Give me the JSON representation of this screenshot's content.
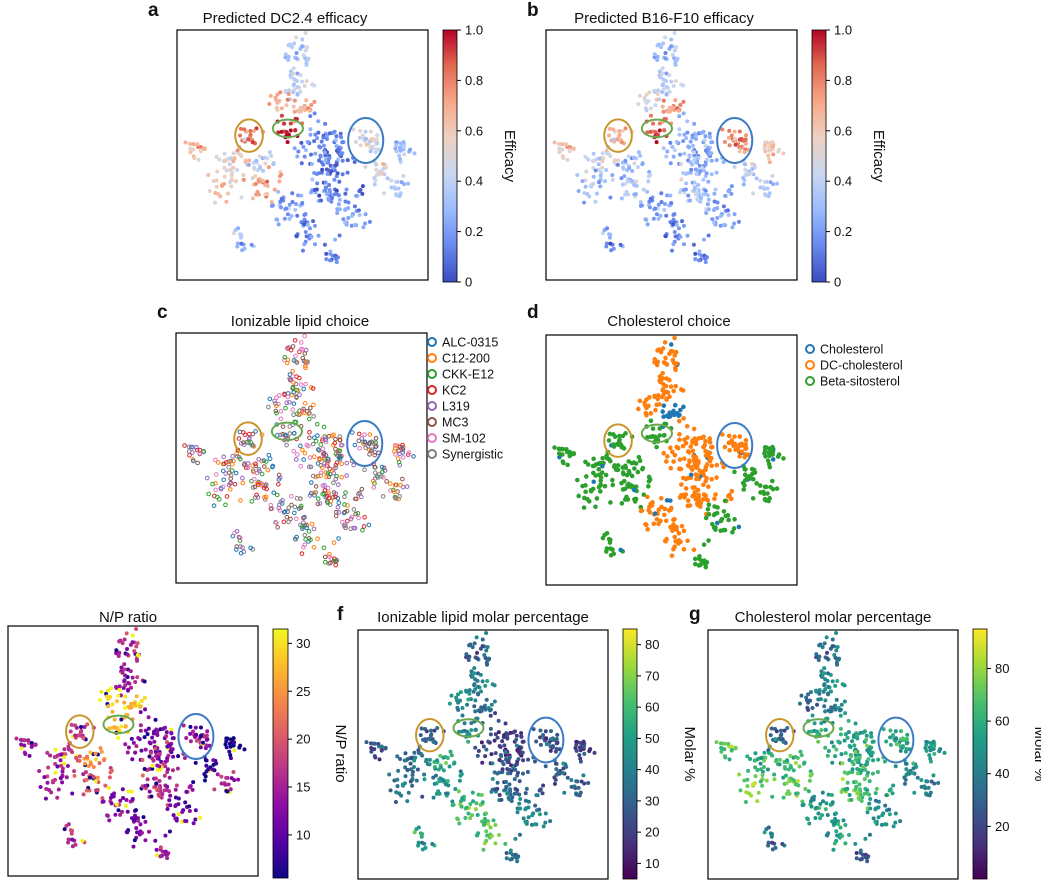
{
  "chart_data": [
    {
      "id": "a",
      "panel_label": "a",
      "type": "scatter",
      "title": "Predicted DC2.4 efficacy",
      "color_by": "eff_dc",
      "colormap": "coolwarm",
      "colorbar": {
        "label": "Efficacy",
        "range": [
          0,
          1
        ],
        "ticks": [
          "0",
          "0.2",
          "0.4",
          "0.6",
          "0.8",
          "1.0"
        ],
        "tick_values": [
          0,
          0.2,
          0.4,
          0.6,
          0.8,
          1.0
        ]
      }
    },
    {
      "id": "b",
      "panel_label": "b",
      "type": "scatter",
      "title": "Predicted B16-F10 efficacy",
      "color_by": "eff_b16",
      "colormap": "coolwarm",
      "colorbar": {
        "label": "Efficacy",
        "range": [
          0,
          1
        ],
        "ticks": [
          "0",
          "0.2",
          "0.4",
          "0.6",
          "0.8",
          "1.0"
        ],
        "tick_values": [
          0,
          0.2,
          0.4,
          0.6,
          0.8,
          1.0
        ]
      }
    },
    {
      "id": "c",
      "panel_label": "c",
      "type": "scatter",
      "title": "Ionizable lipid choice",
      "color_by": "lipid",
      "categorical": true,
      "legend": {
        "position": "right",
        "entries": [
          {
            "label": "ALC-0315",
            "color": "#1f77b4"
          },
          {
            "label": "C12-200",
            "color": "#ff7f0e"
          },
          {
            "label": "CKK-E12",
            "color": "#2ca02c"
          },
          {
            "label": "KC2",
            "color": "#d62728"
          },
          {
            "label": "L319",
            "color": "#9467bd"
          },
          {
            "label": "MC3",
            "color": "#8c564b"
          },
          {
            "label": "SM-102",
            "color": "#e377c2"
          },
          {
            "label": "Synergistic",
            "color": "#7f7f7f"
          }
        ]
      }
    },
    {
      "id": "d",
      "panel_label": "d",
      "type": "scatter",
      "title": "Cholesterol choice",
      "color_by": "chol",
      "categorical": true,
      "legend": {
        "position": "right",
        "entries": [
          {
            "label": "Cholesterol",
            "color": "#1f77b4"
          },
          {
            "label": "DC-cholesterol",
            "color": "#ff7f0e"
          },
          {
            "label": "Beta-sitosterol",
            "color": "#2ca02c"
          }
        ]
      }
    },
    {
      "id": "e",
      "panel_label": "",
      "type": "scatter",
      "title": "N/P ratio",
      "color_by": "np",
      "colormap": "plasma",
      "colorbar": {
        "label": "N/P ratio",
        "range": [
          5.5,
          31.5
        ],
        "ticks": [
          "10",
          "15",
          "20",
          "25",
          "30"
        ],
        "tick_values": [
          10,
          15,
          20,
          25,
          30
        ]
      }
    },
    {
      "id": "f",
      "panel_label": "f",
      "type": "scatter",
      "title": "Ionizable lipid molar percentage",
      "color_by": "ilmp",
      "colormap": "viridis",
      "colorbar": {
        "label": "Molar %",
        "range": [
          5,
          85
        ],
        "ticks": [
          "10",
          "20",
          "30",
          "40",
          "50",
          "60",
          "70",
          "80"
        ],
        "tick_values": [
          10,
          20,
          30,
          40,
          50,
          60,
          70,
          80
        ]
      }
    },
    {
      "id": "g",
      "panel_label": "g",
      "type": "scatter",
      "title": "Cholesterol molar percentage",
      "color_by": "cmp",
      "colormap": "viridis",
      "colorbar": {
        "label": "Molar %",
        "range": [
          0,
          95
        ],
        "ticks": [
          "20",
          "40",
          "60",
          "80"
        ],
        "tick_values": [
          20,
          40,
          60,
          80
        ]
      }
    }
  ],
  "embedding_clusters": [
    {
      "x": 49,
      "y": 8,
      "s": 5,
      "n": 28,
      "eff_dc": 0.35,
      "eff_b16": 0.3,
      "chol": 1,
      "np": 16,
      "ilmp": 30,
      "cmp": 35
    },
    {
      "x": 47,
      "y": 20,
      "s": 5,
      "n": 28,
      "eff_dc": 0.4,
      "eff_b16": 0.38,
      "chol": 1,
      "np": 14,
      "ilmp": 40,
      "cmp": 45
    },
    {
      "x": 41,
      "y": 28,
      "s": 4,
      "n": 14,
      "eff_dc": 0.7,
      "eff_b16": 0.5,
      "chol": 1,
      "np": 30,
      "ilmp": 45,
      "cmp": 30
    },
    {
      "x": 50,
      "y": 31,
      "s": 4,
      "n": 18,
      "eff_dc": 0.7,
      "eff_b16": 0.75,
      "chol": 0,
      "np": 28,
      "ilmp": 35,
      "cmp": 40
    },
    {
      "x": 44,
      "y": 39,
      "s": 4,
      "n": 22,
      "eff_dc": 0.95,
      "eff_b16": 0.85,
      "chol": 2,
      "np": 27,
      "ilmp": 40,
      "cmp": 55
    },
    {
      "x": 28,
      "y": 42,
      "s": 4,
      "n": 20,
      "eff_dc": 0.85,
      "eff_b16": 0.7,
      "chol": 2,
      "np": 18,
      "ilmp": 30,
      "cmp": 30
    },
    {
      "x": 7,
      "y": 47,
      "s": 4,
      "n": 18,
      "eff_dc": 0.65,
      "eff_b16": 0.6,
      "chol": 2,
      "np": 15,
      "ilmp": 25,
      "cmp": 70
    },
    {
      "x": 21,
      "y": 52,
      "s": 6,
      "n": 30,
      "eff_dc": 0.55,
      "eff_b16": 0.45,
      "chol": 2,
      "np": 17,
      "ilmp": 35,
      "cmp": 60
    },
    {
      "x": 58,
      "y": 46,
      "s": 9,
      "n": 70,
      "eff_dc": 0.15,
      "eff_b16": 0.25,
      "chol": 1,
      "np": 12,
      "ilmp": 20,
      "cmp": 55
    },
    {
      "x": 61,
      "y": 60,
      "s": 10,
      "n": 70,
      "eff_dc": 0.12,
      "eff_b16": 0.3,
      "chol": 1,
      "np": 16,
      "ilmp": 30,
      "cmp": 65
    },
    {
      "x": 77,
      "y": 44,
      "s": 5,
      "n": 30,
      "eff_dc": 0.45,
      "eff_b16": 0.75,
      "chol": 1,
      "np": 14,
      "ilmp": 25,
      "cmp": 55
    },
    {
      "x": 91,
      "y": 48,
      "s": 4,
      "n": 22,
      "eff_dc": 0.3,
      "eff_b16": 0.6,
      "chol": 2,
      "np": 6,
      "ilmp": 20,
      "cmp": 50
    },
    {
      "x": 33,
      "y": 62,
      "s": 6,
      "n": 30,
      "eff_dc": 0.7,
      "eff_b16": 0.35,
      "chol": 2,
      "np": 20,
      "ilmp": 45,
      "cmp": 70
    },
    {
      "x": 18,
      "y": 63,
      "s": 5,
      "n": 22,
      "eff_dc": 0.6,
      "eff_b16": 0.3,
      "chol": 2,
      "np": 14,
      "ilmp": 35,
      "cmp": 75
    },
    {
      "x": 45,
      "y": 72,
      "s": 7,
      "n": 35,
      "eff_dc": 0.2,
      "eff_b16": 0.2,
      "chol": 1,
      "np": 13,
      "ilmp": 60,
      "cmp": 50
    },
    {
      "x": 70,
      "y": 75,
      "s": 6,
      "n": 30,
      "eff_dc": 0.2,
      "eff_b16": 0.2,
      "chol": 2,
      "np": 10,
      "ilmp": 40,
      "cmp": 45
    },
    {
      "x": 89,
      "y": 64,
      "s": 4,
      "n": 18,
      "eff_dc": 0.35,
      "eff_b16": 0.35,
      "chol": 2,
      "np": 15,
      "ilmp": 30,
      "cmp": 40
    },
    {
      "x": 25,
      "y": 85,
      "s": 4,
      "n": 14,
      "eff_dc": 0.3,
      "eff_b16": 0.2,
      "chol": 2,
      "np": 17,
      "ilmp": 50,
      "cmp": 35
    },
    {
      "x": 63,
      "y": 92,
      "s": 3,
      "n": 14,
      "eff_dc": 0.15,
      "eff_b16": 0.15,
      "chol": 2,
      "np": 15,
      "ilmp": 35,
      "cmp": 25
    },
    {
      "x": 33,
      "y": 53,
      "s": 4,
      "n": 18,
      "eff_dc": 0.4,
      "eff_b16": 0.3,
      "chol": 2,
      "np": 25,
      "ilmp": 55,
      "cmp": 65
    },
    {
      "x": 53,
      "y": 82,
      "s": 5,
      "n": 22,
      "eff_dc": 0.15,
      "eff_b16": 0.15,
      "chol": 1,
      "np": 12,
      "ilmp": 65,
      "cmp": 55
    },
    {
      "x": 81,
      "y": 57,
      "s": 4,
      "n": 18,
      "eff_dc": 0.5,
      "eff_b16": 0.4,
      "chol": 2,
      "np": 7,
      "ilmp": 30,
      "cmp": 45
    }
  ],
  "highlight_ellipses": [
    {
      "color": "#c8962a",
      "cx": 28,
      "cy": 42,
      "rx": 5.5,
      "ry": 6.5
    },
    {
      "color": "#6aa84f",
      "cx": 44,
      "cy": 39,
      "rx": 6,
      "ry": 3.5
    },
    {
      "color": "#3d7cc4",
      "cx": 76,
      "cy": 44,
      "rx": 7,
      "ry": 9
    }
  ]
}
